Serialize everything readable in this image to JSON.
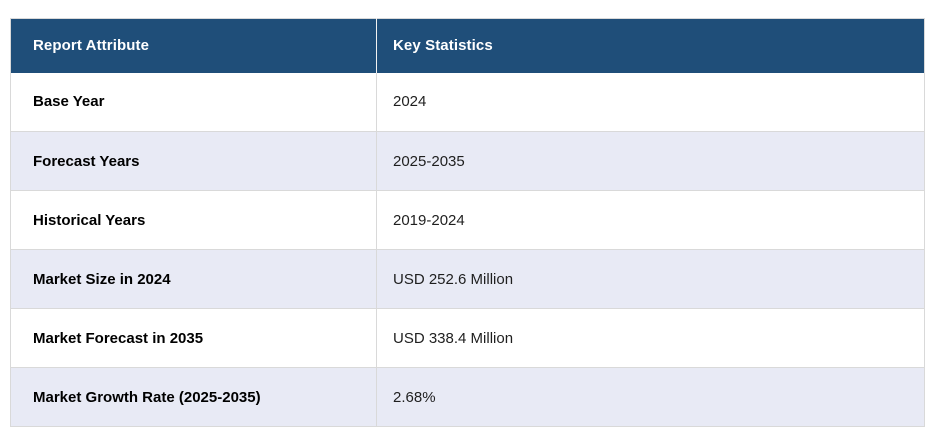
{
  "chart_data": {
    "type": "table",
    "columns": [
      "Report Attribute",
      "Key Statistics"
    ],
    "rows": [
      [
        "Base Year",
        "2024"
      ],
      [
        "Forecast Years",
        "2025-2035"
      ],
      [
        "Historical Years",
        "2019-2024"
      ],
      [
        "Market Size in 2024",
        "USD 252.6 Million"
      ],
      [
        "Market Forecast in 2035",
        "USD 338.4 Million"
      ],
      [
        "Market Growth Rate (2025-2035)",
        "2.68%"
      ]
    ],
    "layout": {
      "header_style": "dark-blue solid fill, white bold text",
      "zebra_striping": "even data rows shaded light lavender",
      "grid": "1px light gray borders between rows and columns"
    }
  },
  "colors": {
    "header_bg": "#1F4E79",
    "header_text": "#FFFFFF",
    "row_bg": "#FFFFFF",
    "row_alt_bg": "#E8EAF5",
    "border": "#D9D9D9",
    "label_text": "#000000",
    "value_text": "#1F1F1F",
    "page_bg": "#FFFFFF"
  }
}
